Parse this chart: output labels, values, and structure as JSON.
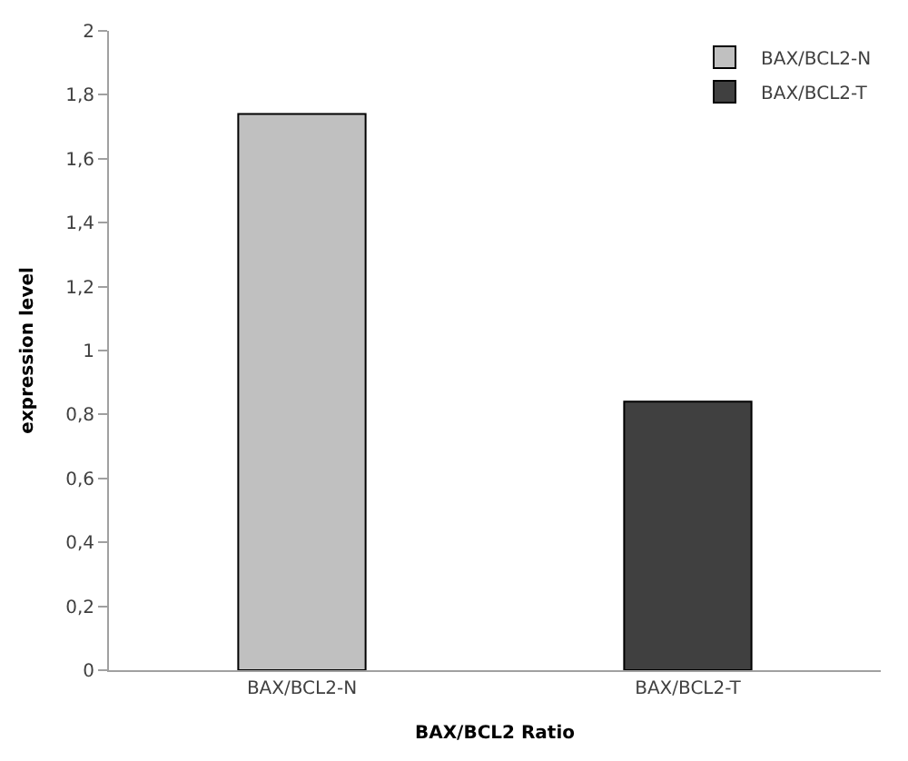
{
  "chart_data": {
    "type": "bar",
    "xlabel": "BAX/BCL2 Ratio",
    "ylabel": "expression level",
    "categories": [
      "BAX/BCL2-N",
      "BAX/BCL2-T"
    ],
    "series": [
      {
        "name": "BAX/BCL2-N",
        "color": "#c0c0c0",
        "values": [
          1.74,
          null
        ]
      },
      {
        "name": "BAX/BCL2-T",
        "color": "#404040",
        "values": [
          null,
          0.84
        ]
      }
    ],
    "ylim": [
      0,
      2
    ],
    "yticks": [
      0,
      {
        "value": 0.2,
        "label": "0,2"
      },
      {
        "value": 0.4,
        "label": "0,4"
      },
      {
        "value": 0.6,
        "label": "0,6"
      },
      {
        "value": 0.8,
        "label": "0,8"
      },
      1,
      {
        "value": 1.2,
        "label": "1,2"
      },
      {
        "value": 1.4,
        "label": "1,4"
      },
      {
        "value": 1.6,
        "label": "1,6"
      },
      {
        "value": 1.8,
        "label": "1,8"
      },
      2
    ],
    "legend": "top right"
  }
}
